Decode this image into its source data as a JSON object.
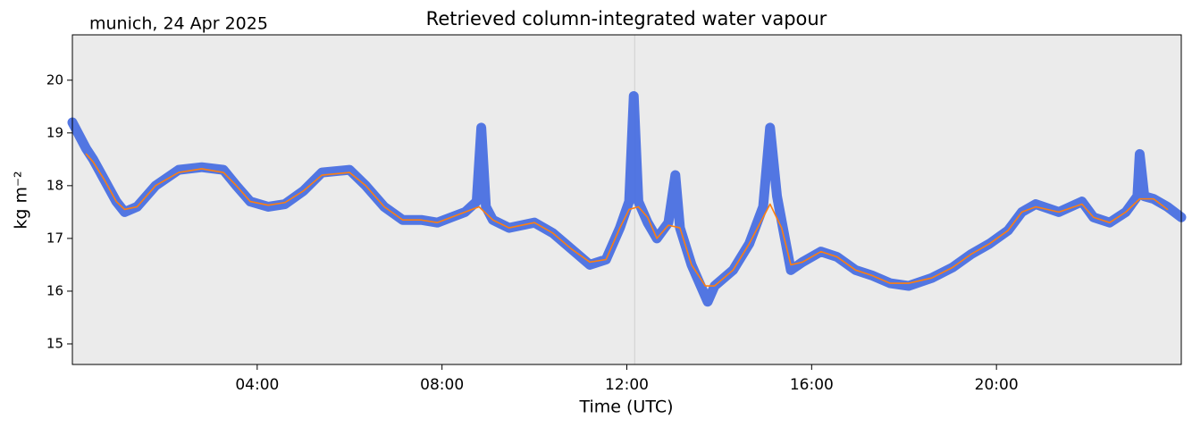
{
  "chart_data": {
    "type": "line",
    "title": "Retrieved column-integrated water vapour",
    "subtitle": "munich, 24 Apr 2025",
    "xlabel": "Time (UTC)",
    "ylabel": "kg m⁻²",
    "xlim": [
      0,
      24
    ],
    "xticks": [
      {
        "value": 4,
        "label": "04:00"
      },
      {
        "value": 8,
        "label": "08:00"
      },
      {
        "value": 12,
        "label": "12:00"
      },
      {
        "value": 16,
        "label": "16:00"
      },
      {
        "value": 20,
        "label": "20:00"
      }
    ],
    "ylim": [
      14.61,
      20.86
    ],
    "yticks": [
      15,
      16,
      17,
      18,
      19,
      20
    ],
    "vline": 12.17,
    "series": [
      {
        "color": "#4169e1",
        "x": [
          0,
          0.3,
          0.45,
          0.7,
          0.95,
          1.13,
          1.4,
          1.8,
          2.3,
          2.8,
          3.27,
          3.55,
          3.85,
          4.24,
          4.6,
          5,
          5.4,
          6,
          6.35,
          6.75,
          7.15,
          7.55,
          7.9,
          8.5,
          8.75,
          8.85,
          8.95,
          9.1,
          9.45,
          10,
          10.4,
          10.8,
          11.2,
          11.55,
          11.85,
          12.05,
          12.15,
          12.25,
          12.45,
          12.65,
          12.9,
          13.05,
          13.15,
          13.4,
          13.75,
          13.9,
          14.3,
          14.65,
          14.95,
          15.1,
          15.25,
          15.55,
          15.8,
          16.2,
          16.55,
          16.95,
          17.3,
          17.7,
          18.1,
          18.6,
          19.05,
          19.45,
          19.85,
          20.25,
          20.55,
          20.85,
          21.35,
          21.85,
          22.1,
          22.45,
          22.8,
          23.05,
          23.1,
          23.2,
          23.4,
          23.7,
          24
        ],
        "values": [
          19.2,
          18.7,
          18.5,
          18.1,
          17.7,
          17.5,
          17.6,
          18.0,
          18.3,
          18.35,
          18.3,
          18.0,
          17.7,
          17.6,
          17.65,
          17.9,
          18.25,
          18.3,
          18.0,
          17.6,
          17.35,
          17.35,
          17.3,
          17.5,
          17.7,
          19.1,
          17.6,
          17.35,
          17.2,
          17.3,
          17.1,
          16.8,
          16.5,
          16.6,
          17.2,
          17.7,
          19.7,
          17.7,
          17.3,
          17.0,
          17.3,
          18.2,
          17.2,
          16.5,
          15.8,
          16.1,
          16.4,
          16.9,
          17.6,
          19.1,
          17.8,
          16.4,
          16.55,
          16.75,
          16.65,
          16.4,
          16.3,
          16.15,
          16.1,
          16.25,
          16.45,
          16.7,
          16.9,
          17.15,
          17.5,
          17.65,
          17.5,
          17.7,
          17.4,
          17.3,
          17.5,
          17.8,
          18.6,
          17.8,
          17.75,
          17.6,
          17.4
        ]
      },
      {
        "color": "#ff7f0e",
        "x": [
          0.3,
          0.45,
          0.7,
          0.95,
          1.13,
          1.4,
          1.8,
          2.3,
          2.8,
          3.27,
          3.55,
          3.85,
          4.24,
          4.6,
          5,
          5.4,
          6,
          6.35,
          6.75,
          7.15,
          7.55,
          7.9,
          8.5,
          8.8,
          9.1,
          9.45,
          10,
          10.4,
          10.8,
          11.2,
          11.55,
          11.85,
          12.05,
          12.25,
          12.45,
          12.65,
          12.9,
          13.15,
          13.4,
          13.7,
          13.9,
          14.3,
          14.65,
          14.95,
          15.1,
          15.35,
          15.55,
          15.8,
          16.2,
          16.55,
          16.95,
          17.3,
          17.7,
          18.1,
          18.6,
          19.05,
          19.45,
          19.85,
          20.25,
          20.55,
          20.85,
          21.35,
          21.85,
          22.1,
          22.45,
          22.8,
          23.1,
          23.4,
          23.7
        ],
        "values": [
          18.6,
          18.45,
          18.1,
          17.7,
          17.55,
          17.6,
          18.0,
          18.25,
          18.32,
          18.25,
          18.0,
          17.7,
          17.63,
          17.68,
          17.9,
          18.2,
          18.25,
          18.0,
          17.6,
          17.35,
          17.35,
          17.3,
          17.5,
          17.6,
          17.35,
          17.2,
          17.3,
          17.1,
          16.8,
          16.55,
          16.6,
          17.2,
          17.55,
          17.6,
          17.4,
          17.0,
          17.25,
          17.2,
          16.5,
          16.1,
          16.1,
          16.4,
          16.9,
          17.4,
          17.65,
          17.2,
          16.5,
          16.55,
          16.75,
          16.65,
          16.4,
          16.3,
          16.15,
          16.15,
          16.25,
          16.45,
          16.7,
          16.9,
          17.15,
          17.5,
          17.6,
          17.5,
          17.65,
          17.4,
          17.3,
          17.5,
          17.75,
          17.75,
          17.55
        ]
      }
    ]
  }
}
